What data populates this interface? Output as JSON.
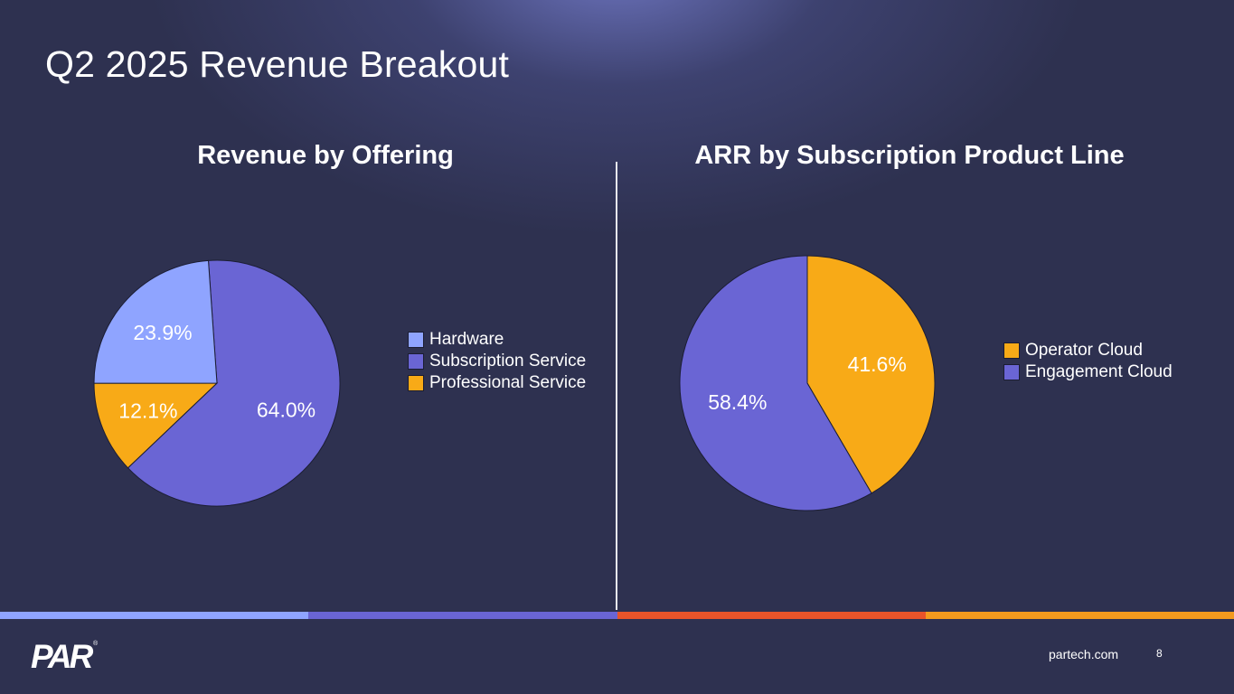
{
  "slide_title": "Q2 2025 Revenue Breakout",
  "colors": {
    "background": "#2e3150",
    "band": [
      "#8fa4ff",
      "#6a65d4",
      "#e8542a",
      "#f39a1e"
    ]
  },
  "chart_data": [
    {
      "type": "pie",
      "title": "Revenue by Offering",
      "start_angle_deg": -4,
      "slices": [
        {
          "name": "Subscription Service",
          "value": 64.0,
          "label": "64.0%",
          "color": "#6a65d4"
        },
        {
          "name": "Professional Service",
          "value": 12.1,
          "label": "12.1%",
          "color": "#f8aa17"
        },
        {
          "name": "Hardware",
          "value": 23.9,
          "label": "23.9%",
          "color": "#8fa4ff"
        }
      ],
      "legend": {
        "position": "right",
        "entries": [
          {
            "name": "Hardware",
            "color": "#8fa4ff"
          },
          {
            "name": "Subscription Service",
            "color": "#6a65d4"
          },
          {
            "name": "Professional Service",
            "color": "#f8aa17"
          }
        ]
      }
    },
    {
      "type": "pie",
      "title": "ARR by Subscription Product Line",
      "start_angle_deg": 0,
      "slices": [
        {
          "name": "Operator Cloud",
          "value": 41.6,
          "label": "41.6%",
          "color": "#f8aa17"
        },
        {
          "name": "Engagement Cloud",
          "value": 58.4,
          "label": "58.4%",
          "color": "#6a65d4"
        }
      ],
      "legend": {
        "position": "right",
        "entries": [
          {
            "name": "Operator Cloud",
            "color": "#f8aa17"
          },
          {
            "name": "Engagement Cloud",
            "color": "#6a65d4"
          }
        ]
      }
    }
  ],
  "footer": {
    "logo_text": "PAR",
    "logo_mark": "®",
    "url": "partech.com",
    "page_number": "8"
  }
}
